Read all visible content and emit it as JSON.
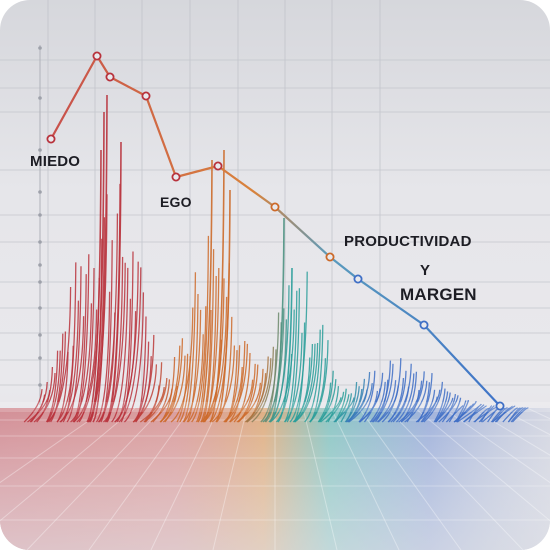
{
  "labels": {
    "fear": "MIEDO",
    "ego": "EGO",
    "productivity": "PRODUCTIVIDAD",
    "and": "Y",
    "margin": "MARGEN"
  },
  "colors": {
    "red": "#b8323c",
    "orange": "#cc6a2a",
    "teal": "#2a9d9a",
    "blue": "#3f6fc6",
    "trend_start": "#c8504c",
    "trend_end": "#3f73c8"
  }
}
